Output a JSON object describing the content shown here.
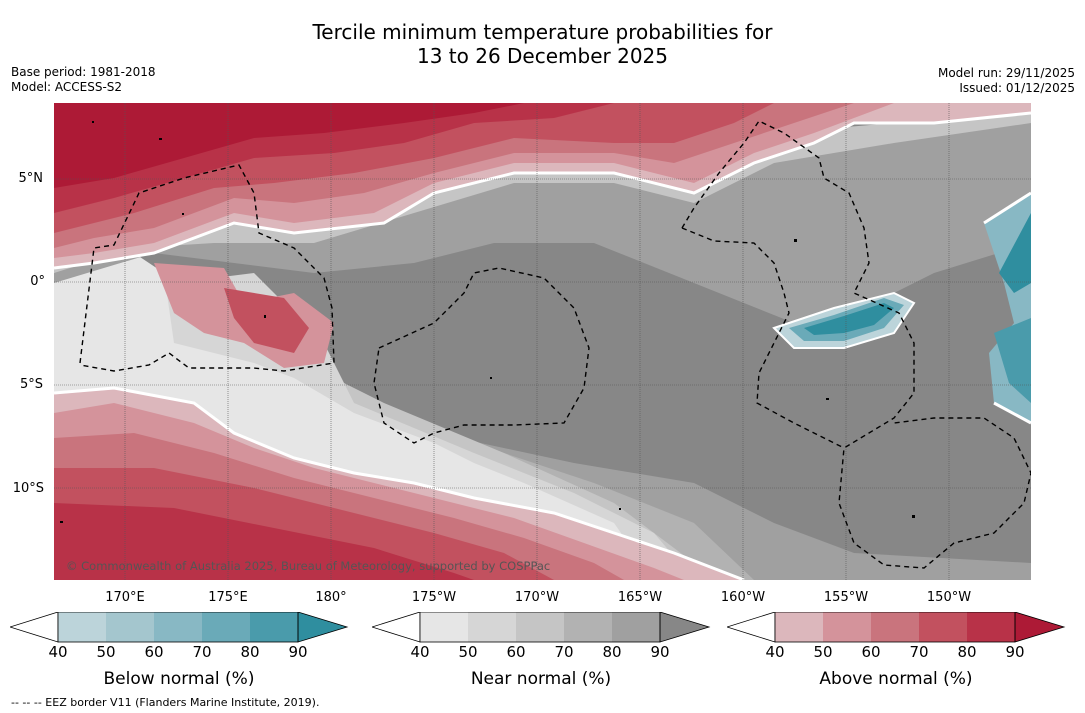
{
  "title": {
    "line1": "Tercile minimum temperature probabilities for",
    "line2": "13 to 26 December 2025"
  },
  "meta": {
    "base_period": "Base period: 1981-2018",
    "model": "Model: ACCESS-S2",
    "model_run": "Model run: 29/11/2025",
    "issued": "Issued: 01/12/2025"
  },
  "map": {
    "lat_labels": [
      "5°N",
      "0°",
      "5°S",
      "10°S"
    ],
    "lon_labels": [
      "170°E",
      "175°E",
      "180°",
      "175°W",
      "170°W",
      "165°W",
      "160°W",
      "155°W",
      "150°W"
    ],
    "copyright": "© Commonwealth of Australia 2025, Bureau of Meteorology, supported by COSPPac",
    "colors": {
      "above": [
        "#dcb7bc",
        "#d4939b",
        "#c9747d",
        "#c2515f",
        "#b83248",
        "#ad1a36"
      ],
      "near": [
        "#e6e6e6",
        "#d6d6d6",
        "#c5c5c5",
        "#b2b2b2",
        "#a0a0a0",
        "#878787"
      ],
      "below": [
        "#bcd4da",
        "#a4c6ce",
        "#88b8c4",
        "#6aaab8",
        "#4a9bab",
        "#2f8e9f"
      ]
    }
  },
  "colorbars": {
    "below": {
      "title": "Below normal (%)",
      "ticks": [
        "40",
        "50",
        "60",
        "70",
        "80",
        "90"
      ]
    },
    "near": {
      "title": "Near normal (%)",
      "ticks": [
        "40",
        "50",
        "60",
        "70",
        "80",
        "90"
      ]
    },
    "above": {
      "title": "Above normal (%)",
      "ticks": [
        "40",
        "50",
        "60",
        "70",
        "80",
        "90"
      ]
    }
  },
  "footnote": "--  --  -- EEZ border V11 (Flanders Marine Institute, 2019)."
}
